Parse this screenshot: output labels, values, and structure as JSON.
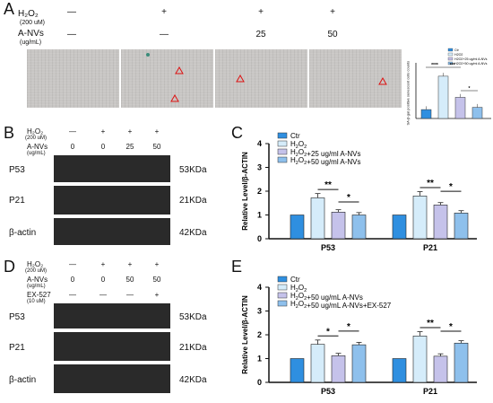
{
  "panelA": {
    "label": "A",
    "row_labels": {
      "h2o2": "H₂O₂",
      "h2o2_conc": "(200 uM)",
      "anv": "A-NVs",
      "anv_unit": "(ug/mL)"
    },
    "h2o2_symbols": [
      "—",
      "+",
      "+",
      "+"
    ],
    "anv_values": [
      "—",
      "—",
      "25",
      "50"
    ],
    "bar_ylabel": "SA-β-gal positive senescent cells counts",
    "legend": [
      "Ctr",
      "H2O2",
      "H2O2+25 ug/ml A-NVs",
      "H2O2+50 ug/ml A-NVs"
    ],
    "sig": [
      "****",
      "***",
      "*"
    ]
  },
  "panelB": {
    "label": "B",
    "header_h2o2": "H₂O₂",
    "header_h2o2_conc": "(200 uM)",
    "header_anv": "A-NVs",
    "header_anv_unit": "(ug/mL)",
    "h2o2_symbols": [
      "—",
      "+",
      "+",
      "+"
    ],
    "anv_values": [
      "0",
      "0",
      "25",
      "50"
    ],
    "bands": [
      "P53",
      "P21",
      "β-actin"
    ],
    "kda": [
      "53KDa",
      "21KDa",
      "42KDa"
    ]
  },
  "panelC": {
    "label": "C",
    "ylabel": "Relative Level/β-ACTIN",
    "legend": [
      "Ctr",
      "H2O2",
      "H2O2+25 ug/ml A-NVs",
      "H2O2+50 ug/ml A-NVs"
    ],
    "sig": [
      "**",
      "*",
      "**",
      "*"
    ]
  },
  "panelD": {
    "label": "D",
    "header_h2o2": "H₂O₂",
    "header_h2o2_conc": "(200 uM)",
    "header_anv": "A-NVs",
    "header_anv_unit": "(ug/mL)",
    "header_ex": "EX-527",
    "header_ex_conc": "(10 uM)",
    "h2o2_symbols": [
      "—",
      "+",
      "+",
      "+"
    ],
    "anv_values": [
      "0",
      "0",
      "50",
      "50"
    ],
    "ex_symbols": [
      "—",
      "—",
      "—",
      "+"
    ],
    "bands": [
      "P53",
      "P21",
      "β-actin"
    ],
    "kda": [
      "53KDa",
      "21KDa",
      "42KDa"
    ]
  },
  "panelE": {
    "label": "E",
    "ylabel": "Relative Level/β-ACTIN",
    "legend": [
      "Ctr",
      "H2O2",
      "H2O2+50 ug/mL A-NVs",
      "H2O2+50 ug/mL A-NVs+EX-527"
    ],
    "sig": [
      "*",
      "*",
      "**",
      "*"
    ]
  },
  "colors": {
    "ctr": "#2f8fe0",
    "h2o2": "#d5ecfa",
    "low": "#c5c2ea",
    "high": "#8ec0ec"
  },
  "chart_data": [
    {
      "type": "bar",
      "panel": "A",
      "title": "",
      "ylabel": "SA-β-gal positive senescent cells counts",
      "categories": [
        ""
      ],
      "series": [
        {
          "name": "Ctr",
          "values": [
            8
          ]
        },
        {
          "name": "H2O2",
          "values": [
            38
          ]
        },
        {
          "name": "H2O2+25 ug/ml A-NVs",
          "values": [
            19
          ]
        },
        {
          "name": "H2O2+50 ug/ml A-NVs",
          "values": [
            10
          ]
        }
      ],
      "ylim": [
        0,
        50
      ],
      "legend_position": "top-right"
    },
    {
      "type": "bar",
      "panel": "C",
      "title": "",
      "xlabel": "",
      "ylabel": "Relative Level/β-ACTIN",
      "categories": [
        "P53",
        "P21"
      ],
      "yticks": [
        "0",
        "1",
        "2",
        "3",
        "4"
      ],
      "ylim": [
        0,
        4
      ],
      "series": [
        {
          "name": "Ctr",
          "values": [
            1.0,
            1.0
          ]
        },
        {
          "name": "H2O2",
          "values": [
            1.72,
            1.8
          ]
        },
        {
          "name": "H2O2+25 ug/ml A-NVs",
          "values": [
            1.12,
            1.42
          ]
        },
        {
          "name": "H2O2+50 ug/ml A-NVs",
          "values": [
            1.0,
            1.08
          ]
        }
      ],
      "legend_position": "top-left"
    },
    {
      "type": "bar",
      "panel": "E",
      "title": "",
      "xlabel": "",
      "ylabel": "Relative Level/β-ACTIN",
      "categories": [
        "P53",
        "P21"
      ],
      "yticks": [
        "0",
        "1",
        "2",
        "3",
        "4"
      ],
      "ylim": [
        0,
        4
      ],
      "series": [
        {
          "name": "Ctr",
          "values": [
            1.0,
            1.0
          ]
        },
        {
          "name": "H2O2",
          "values": [
            1.6,
            1.95
          ]
        },
        {
          "name": "H2O2+50 ug/mL A-NVs",
          "values": [
            1.12,
            1.1
          ]
        },
        {
          "name": "H2O2+50 ug/mL A-NVs+EX-527",
          "values": [
            1.58,
            1.65
          ]
        }
      ],
      "legend_position": "top-left"
    }
  ]
}
